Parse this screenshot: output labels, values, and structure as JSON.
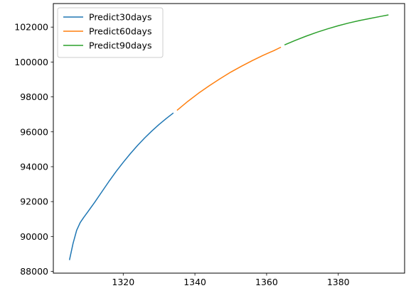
{
  "chart_data": {
    "type": "line",
    "title": "",
    "xlabel": "",
    "ylabel": "",
    "xlim": [
      1300.5,
      1398.5
    ],
    "ylim": [
      87900,
      103350
    ],
    "xticks": [
      1320,
      1340,
      1360,
      1380
    ],
    "yticks": [
      88000,
      90000,
      92000,
      94000,
      96000,
      98000,
      100000,
      102000
    ],
    "grid": false,
    "legend_position": "top-left",
    "series": [
      {
        "name": "Predict30days",
        "color": "#1f77b4",
        "x": [
          1305,
          1306,
          1307,
          1308,
          1309,
          1310,
          1312,
          1314,
          1316,
          1318,
          1320,
          1322,
          1324,
          1326,
          1328,
          1330,
          1332,
          1334
        ],
        "y": [
          88650,
          89600,
          90350,
          90800,
          91100,
          91380,
          91950,
          92550,
          93150,
          93720,
          94250,
          94750,
          95220,
          95650,
          96050,
          96420,
          96760,
          97080
        ]
      },
      {
        "name": "Predict60days",
        "color": "#ff7f0e",
        "x": [
          1335,
          1338,
          1341,
          1344,
          1347,
          1350,
          1353,
          1356,
          1359,
          1362,
          1364
        ],
        "y": [
          97230,
          97740,
          98210,
          98640,
          99040,
          99420,
          99760,
          100080,
          100380,
          100650,
          100850
        ]
      },
      {
        "name": "Predict90days",
        "color": "#2ca02c",
        "x": [
          1365,
          1368,
          1371,
          1374,
          1377,
          1380,
          1383,
          1386,
          1389,
          1392,
          1394
        ],
        "y": [
          100980,
          101240,
          101480,
          101700,
          101900,
          102080,
          102240,
          102380,
          102500,
          102620,
          102700
        ]
      }
    ]
  }
}
